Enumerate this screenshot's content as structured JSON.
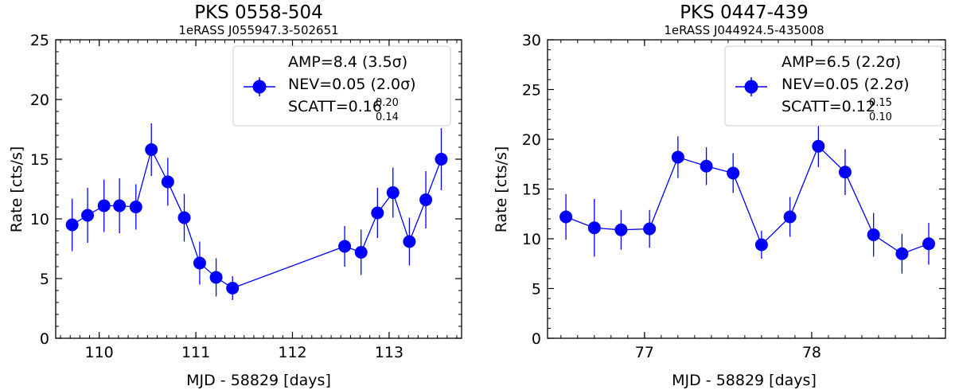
{
  "chart_data": [
    {
      "type": "scatter",
      "title": "PKS 0558-504",
      "subtitle": "1eRASS J055947.3-502651",
      "xlabel": "MJD - 58829 [days]",
      "ylabel": "Rate [cts/s]",
      "xlim": [
        109.55,
        113.75
      ],
      "ylim": [
        0,
        25
      ],
      "xticks": [
        110,
        111,
        112,
        113
      ],
      "xtick_labels": [
        "110",
        "111",
        "112",
        "113"
      ],
      "yticks": [
        0,
        5,
        10,
        15,
        20,
        25
      ],
      "ytick_labels": [
        "0",
        "5",
        "10",
        "15",
        "20",
        "25"
      ],
      "legend": {
        "position": "top-right",
        "line1": "AMP=8.4 (3.5σ)",
        "line2": "NEV=0.05 (2.0σ)",
        "scatt_prefix": "SCATT=0.16",
        "scatt_sup": "0.20",
        "scatt_sub": "0.14"
      },
      "color": "#0000ff",
      "series": [
        {
          "name": "rate",
          "x": [
            109.72,
            109.88,
            110.05,
            110.21,
            110.38,
            110.54,
            110.71,
            110.88,
            111.04,
            111.21,
            111.38,
            112.54,
            112.71,
            112.88,
            113.04,
            113.21,
            113.38,
            113.54
          ],
          "y": [
            9.5,
            10.3,
            11.1,
            11.1,
            11.0,
            15.8,
            13.1,
            10.1,
            6.3,
            5.1,
            4.2,
            7.7,
            7.2,
            10.5,
            12.2,
            8.1,
            11.6,
            15.0
          ],
          "yerr": [
            2.2,
            2.3,
            2.2,
            2.3,
            1.9,
            2.2,
            2.0,
            2.0,
            1.8,
            1.6,
            1.0,
            1.7,
            1.9,
            2.1,
            2.1,
            2.0,
            2.4,
            2.6
          ]
        }
      ]
    },
    {
      "type": "scatter",
      "title": "PKS 0447-439",
      "subtitle": "1eRASS J044924.5-435008",
      "xlabel": "MJD - 58829 [days]",
      "ylabel": "Rate [cts/s]",
      "xlim": [
        76.42,
        78.8
      ],
      "ylim": [
        0,
        30
      ],
      "xticks": [
        77,
        78
      ],
      "xtick_labels": [
        "77",
        "78"
      ],
      "yticks": [
        0,
        5,
        10,
        15,
        20,
        25,
        30
      ],
      "ytick_labels": [
        "0",
        "5",
        "10",
        "15",
        "20",
        "25",
        "30"
      ],
      "legend": {
        "position": "top-right",
        "line1": "AMP=6.5 (2.2σ)",
        "line2": "NEV=0.05 (2.2σ)",
        "scatt_prefix": "SCATT=0.12",
        "scatt_sup": "0.15",
        "scatt_sub": "0.10"
      },
      "color": "#0000ff",
      "series": [
        {
          "name": "rate",
          "x": [
            76.53,
            76.7,
            76.86,
            77.03,
            77.2,
            77.37,
            77.53,
            77.7,
            77.87,
            78.04,
            78.2,
            78.37,
            78.54,
            78.7
          ],
          "y": [
            12.2,
            11.1,
            10.9,
            11.0,
            18.2,
            17.3,
            16.6,
            9.4,
            12.2,
            19.3,
            16.7,
            10.4,
            8.5,
            9.5
          ],
          "yerr": [
            2.3,
            2.9,
            2.0,
            1.9,
            2.1,
            1.9,
            2.0,
            1.4,
            2.0,
            2.1,
            2.3,
            2.2,
            2.0,
            2.1
          ]
        }
      ]
    }
  ]
}
